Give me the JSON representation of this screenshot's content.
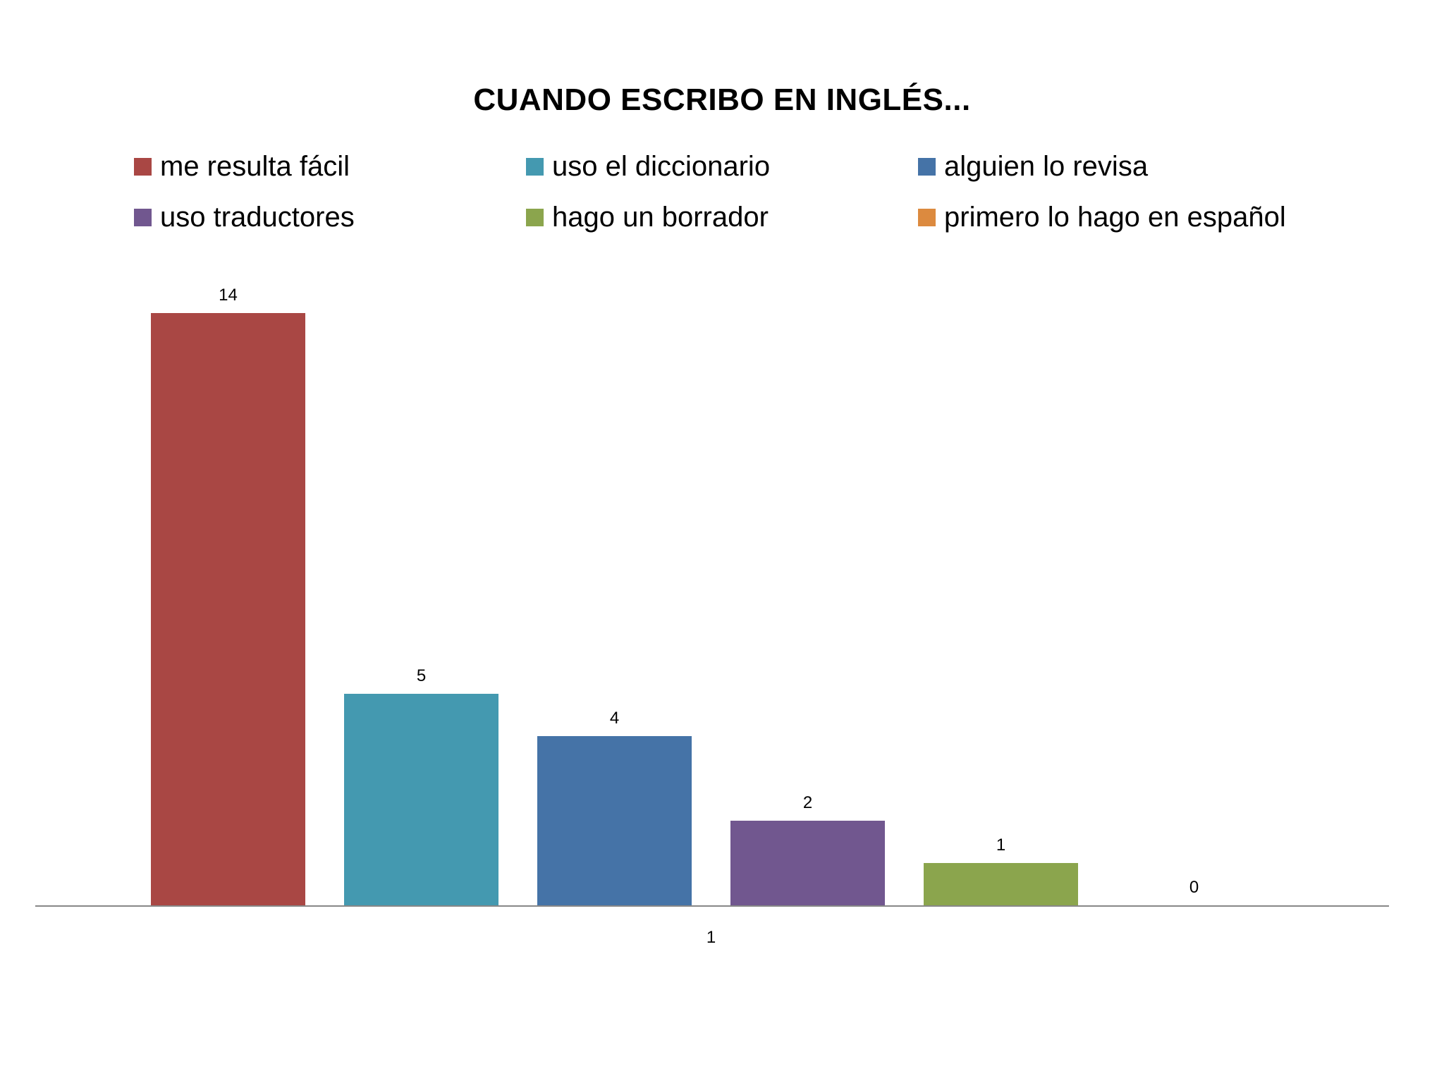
{
  "chart_data": {
    "type": "bar",
    "title": "CUANDO ESCRIBO EN INGLÉS...",
    "categories": [
      "1"
    ],
    "xlabel": "",
    "ylabel": "",
    "ylim": [
      0,
      15
    ],
    "grid": false,
    "legend_position": "top",
    "series": [
      {
        "name": "me resulta fácil",
        "values": [
          14
        ],
        "color": "#A94744"
      },
      {
        "name": "uso el diccionario",
        "values": [
          5
        ],
        "color": "#4499B0"
      },
      {
        "name": "alguien lo revisa",
        "values": [
          4
        ],
        "color": "#4573A7"
      },
      {
        "name": "uso traductores",
        "values": [
          2
        ],
        "color": "#71578F"
      },
      {
        "name": "hago un borrador",
        "values": [
          1
        ],
        "color": "#8BA54D"
      },
      {
        "name": "primero lo hago en español",
        "values": [
          0
        ],
        "color": "#DC8A3F"
      }
    ]
  }
}
